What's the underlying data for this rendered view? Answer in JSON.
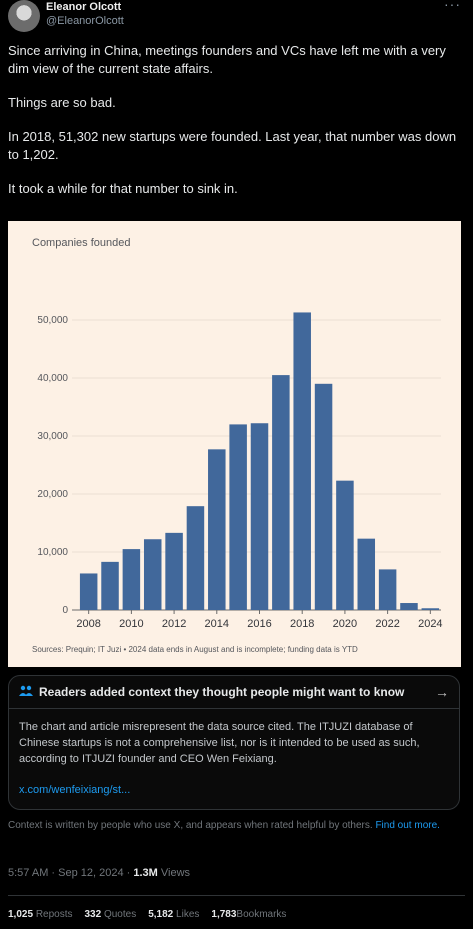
{
  "author": {
    "name": "Eleanor Olcott",
    "handle": "@EleanorOlcott",
    "more_icon": "more-horizontal-icon"
  },
  "tweet": {
    "paragraphs": [
      "Since arriving in China, meetings founders and VCs have left me with a very dim view of the current state affairs.",
      "Things are so bad.",
      "In 2018, 51,302 new startups were founded. Last year, that number was down to 1,202.",
      "It took a while for that number to sink in."
    ]
  },
  "chart_data": {
    "type": "bar",
    "title": "Companies founded",
    "categories": [
      "2008",
      "2009",
      "2010",
      "2011",
      "2012",
      "2013",
      "2014",
      "2015",
      "2016",
      "2017",
      "2018",
      "2019",
      "2020",
      "2021",
      "2022",
      "2023",
      "2024"
    ],
    "values": [
      6300,
      8300,
      10500,
      12200,
      13300,
      17900,
      27700,
      32000,
      32200,
      40500,
      51302,
      39000,
      22300,
      12300,
      7000,
      1202,
      300
    ],
    "x_tick_labels": [
      "2008",
      "2010",
      "2012",
      "2014",
      "2016",
      "2018",
      "2020",
      "2022",
      "2024"
    ],
    "y_ticks": [
      0,
      10000,
      20000,
      30000,
      40000,
      50000
    ],
    "y_tick_labels": [
      "0",
      "10,000",
      "20,000",
      "30,000",
      "40,000",
      "50,000"
    ],
    "ylim": [
      0,
      55000
    ],
    "source": "Sources: Prequin; IT Juzi • 2024 data ends in August and is incomplete; funding data is YTD",
    "bar_color": "#41689b",
    "background": "#fdf1e5",
    "grid": true
  },
  "community_note": {
    "icon": "people-icon",
    "title": "Readers added context they thought people might want to know",
    "body": "The chart and article misrepresent the data source cited. The ITJUZI database of Chinese startups is not a comprehensive list, nor is it intended to be used as such, according to ITJUZI founder and CEO Wen Feixiang.",
    "link": "x.com/wenfeixiang/st...",
    "arrow_icon": "arrow-right-icon"
  },
  "context_footer": {
    "text": "Context is written by people who use X, and appears when rated helpful by others.",
    "link": "Find out more."
  },
  "meta": {
    "time": "5:57 AM · Sep 12, 2024 · ",
    "views_count": "1.3M",
    "views_label": " Views"
  },
  "stats": {
    "reposts_count": "1,025",
    "reposts_label": "Reposts",
    "quotes_count": "332",
    "quotes_label": "Quotes",
    "likes_count": "5,182",
    "likes_label": "Likes",
    "bookmarks_count": "1,783",
    "bookmarks_label": "Bookmarks"
  }
}
